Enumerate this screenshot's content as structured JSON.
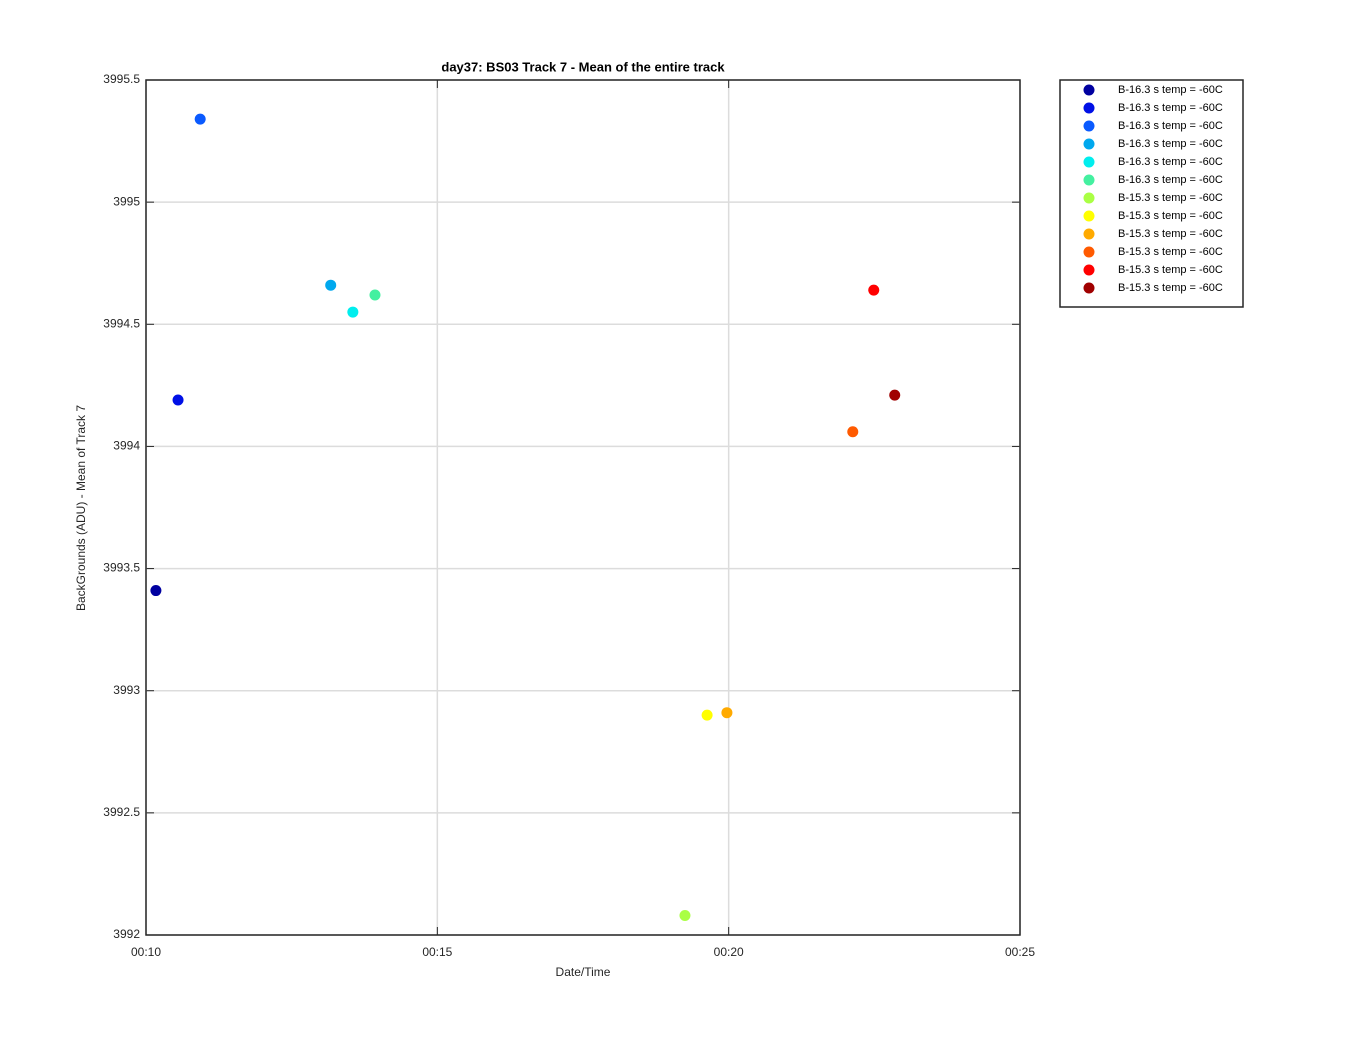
{
  "chart_data": {
    "type": "scatter",
    "title": "day37: BS03  Track 7 - Mean of the entire track",
    "x_label": "Date/Time",
    "y_label": "BackGrounds (ADU) - Mean of Track 7",
    "xlim": [
      10,
      25
    ],
    "xticks": [
      {
        "value": 10,
        "label": "00:10"
      },
      {
        "value": 15,
        "label": "00:15"
      },
      {
        "value": 20,
        "label": "00:20"
      },
      {
        "value": 25,
        "label": "00:25"
      }
    ],
    "ylim": [
      3992,
      3995.5
    ],
    "yticks": [
      3992,
      3992.5,
      3993,
      3993.5,
      3994,
      3994.5,
      3995,
      3995.5
    ],
    "grid": true,
    "legend": "northeastoutside",
    "series": [
      {
        "name": "B-16.3 s temp = -60C",
        "color": "#0000a0",
        "x": [
          10.17
        ],
        "values": [
          3993.41
        ]
      },
      {
        "name": "B-16.3 s temp = -60C",
        "color": "#0010e6",
        "x": [
          10.55
        ],
        "values": [
          3994.19
        ]
      },
      {
        "name": "B-16.3 s temp = -60C",
        "color": "#0a5aff",
        "x": [
          10.93
        ],
        "values": [
          3995.34
        ]
      },
      {
        "name": "B-16.3 s temp = -60C",
        "color": "#00a8ee",
        "x": [
          13.17
        ],
        "values": [
          3994.66
        ]
      },
      {
        "name": "B-16.3 s temp = -60C",
        "color": "#00eeee",
        "x": [
          13.55
        ],
        "values": [
          3994.55
        ]
      },
      {
        "name": "B-16.3 s temp = -60C",
        "color": "#44f0a0",
        "x": [
          13.93
        ],
        "values": [
          3994.62
        ]
      },
      {
        "name": "B-15.3 s temp = -60C",
        "color": "#aaff44",
        "x": [
          19.25
        ],
        "values": [
          3992.08
        ]
      },
      {
        "name": "B-15.3 s temp = -60C",
        "color": "#ffff00",
        "x": [
          19.63
        ],
        "values": [
          3992.9
        ]
      },
      {
        "name": "B-15.3 s temp = -60C",
        "color": "#ffaa00",
        "x": [
          19.97
        ],
        "values": [
          3992.91
        ]
      },
      {
        "name": "B-15.3 s temp = -60C",
        "color": "#ff5a00",
        "x": [
          22.13
        ],
        "values": [
          3994.06
        ]
      },
      {
        "name": "B-15.3 s temp = -60C",
        "color": "#ff0000",
        "x": [
          22.49
        ],
        "values": [
          3994.64
        ]
      },
      {
        "name": "B-15.3 s temp = -60C",
        "color": "#a00000",
        "x": [
          22.85
        ],
        "values": [
          3994.21
        ]
      }
    ]
  }
}
